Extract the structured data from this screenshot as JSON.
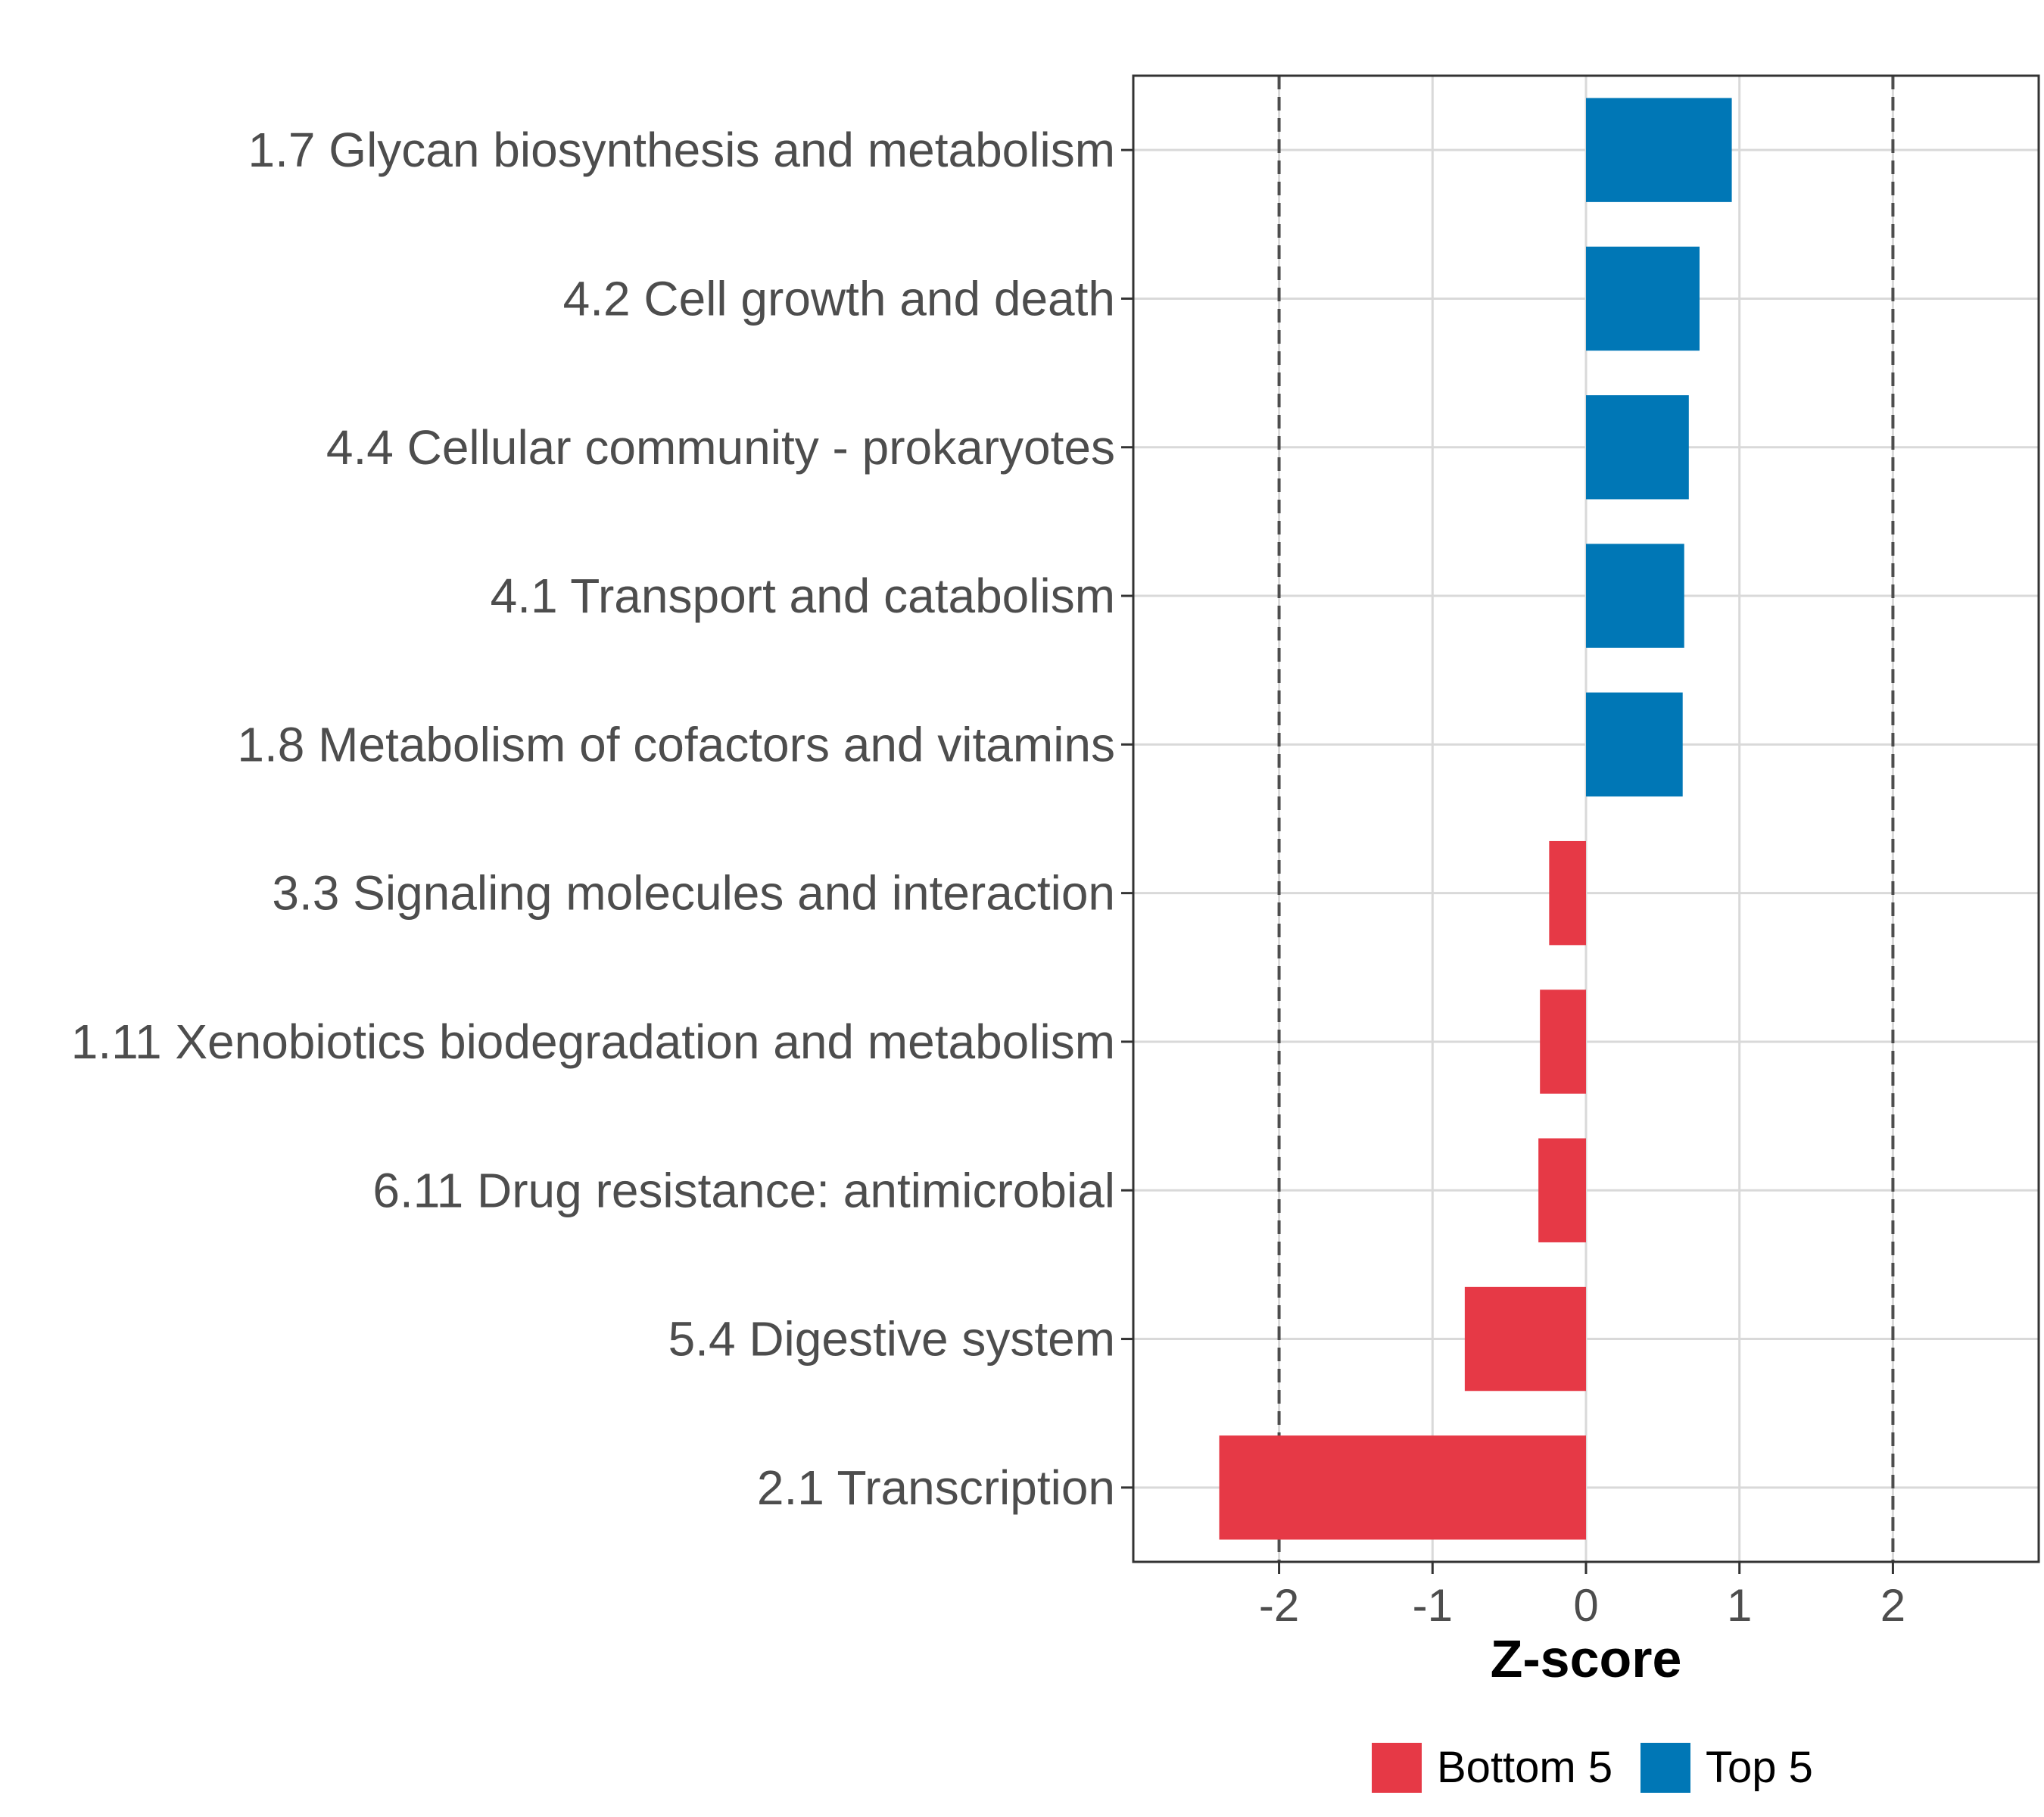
{
  "chart_data": {
    "type": "bar",
    "orientation": "horizontal",
    "categories": [
      "1.7 Glycan biosynthesis and metabolism",
      "4.2 Cell growth and death",
      "4.4 Cellular community - prokaryotes",
      "4.1 Transport and catabolism",
      "1.8 Metabolism of cofactors and vitamins",
      "3.3 Signaling molecules and interaction",
      "1.11 Xenobiotics biodegradation and metabolism",
      "6.11 Drug resistance: antimicrobial",
      "5.4 Digestive system",
      "2.1 Transcription"
    ],
    "values": [
      0.95,
      0.74,
      0.67,
      0.64,
      0.63,
      -0.24,
      -0.3,
      -0.31,
      -0.79,
      -2.39
    ],
    "groups": [
      "Top 5",
      "Top 5",
      "Top 5",
      "Top 5",
      "Top 5",
      "Bottom 5",
      "Bottom 5",
      "Bottom 5",
      "Bottom 5",
      "Bottom 5"
    ],
    "xlabel": "Z-score",
    "xlim": [
      -2.95,
      2.95
    ],
    "xticks": [
      -2,
      -1,
      0,
      1,
      2
    ],
    "xtick_labels": [
      "-2",
      "-1",
      "0",
      "1",
      "2"
    ],
    "reference_lines": [
      -2,
      2
    ],
    "grid": true,
    "legend": {
      "position": "bottom",
      "entries": [
        {
          "label": "Bottom 5",
          "color": "#e63946"
        },
        {
          "label": "Top 5",
          "color": "#0077b6"
        }
      ]
    }
  }
}
